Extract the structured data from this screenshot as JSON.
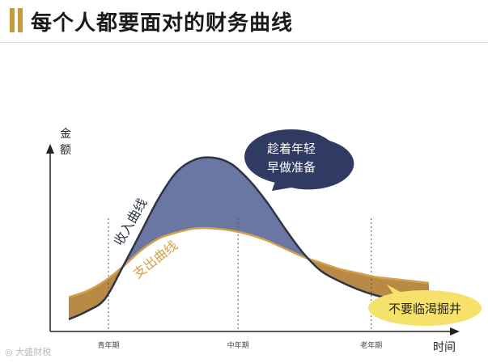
{
  "header": {
    "title": "每个人都要面对的财务曲线"
  },
  "watermark": {
    "text": "大盛财税"
  },
  "chart_data": {
    "type": "line",
    "title": "每个人都要面对的财务曲线",
    "xlabel": "时间",
    "ylabel": "金额",
    "x_ticks": [
      "青年期",
      "中年期",
      "老年期"
    ],
    "grid": false,
    "series": [
      {
        "name": "收入曲线",
        "color": "#2e3547",
        "x": [
          0,
          5,
          10,
          15,
          20,
          25,
          30,
          35,
          40,
          45,
          50,
          55,
          60,
          65,
          70,
          75,
          80,
          85,
          90,
          95,
          100
        ],
        "y": [
          2,
          6,
          12,
          28,
          45,
          62,
          75,
          81,
          82,
          79,
          71,
          60,
          47,
          35,
          26,
          21,
          17,
          14,
          12,
          11,
          10
        ]
      },
      {
        "name": "支出曲线",
        "color": "#d4a04c",
        "x": [
          0,
          5,
          10,
          15,
          20,
          25,
          30,
          35,
          40,
          45,
          50,
          55,
          60,
          65,
          70,
          75,
          80,
          85,
          90,
          95,
          100
        ],
        "y": [
          13,
          16,
          21,
          28,
          36,
          42,
          45,
          47,
          47,
          46,
          44,
          41,
          37,
          33,
          30,
          27,
          25,
          23,
          22,
          21,
          20
        ]
      }
    ],
    "fills": [
      {
        "between": [
          "收入曲线",
          "支出曲线"
        ],
        "where": "收入曲线 > 支出曲线",
        "color": "#6b77a3"
      },
      {
        "between": [
          "支出曲线",
          "收入曲线"
        ],
        "where": "支出曲线 > 收入曲线",
        "color": "#b98a46"
      }
    ],
    "annotations": [
      {
        "text": "趁着年轻",
        "line": 1,
        "shape": "speech-bubble",
        "color": "#2f3b63"
      },
      {
        "text": "早做准备",
        "line": 2,
        "shape": "speech-bubble",
        "color": "#2f3b63"
      },
      {
        "text": "不要临渴掘井",
        "shape": "speech-bubble",
        "color": "#f6e16a"
      }
    ],
    "series_labels": [
      {
        "text": "收入曲线",
        "series": "收入曲线"
      },
      {
        "text": "支出曲线",
        "series": "支出曲线"
      }
    ],
    "xlim": [
      0,
      100
    ],
    "ylim": [
      0,
      100
    ]
  }
}
